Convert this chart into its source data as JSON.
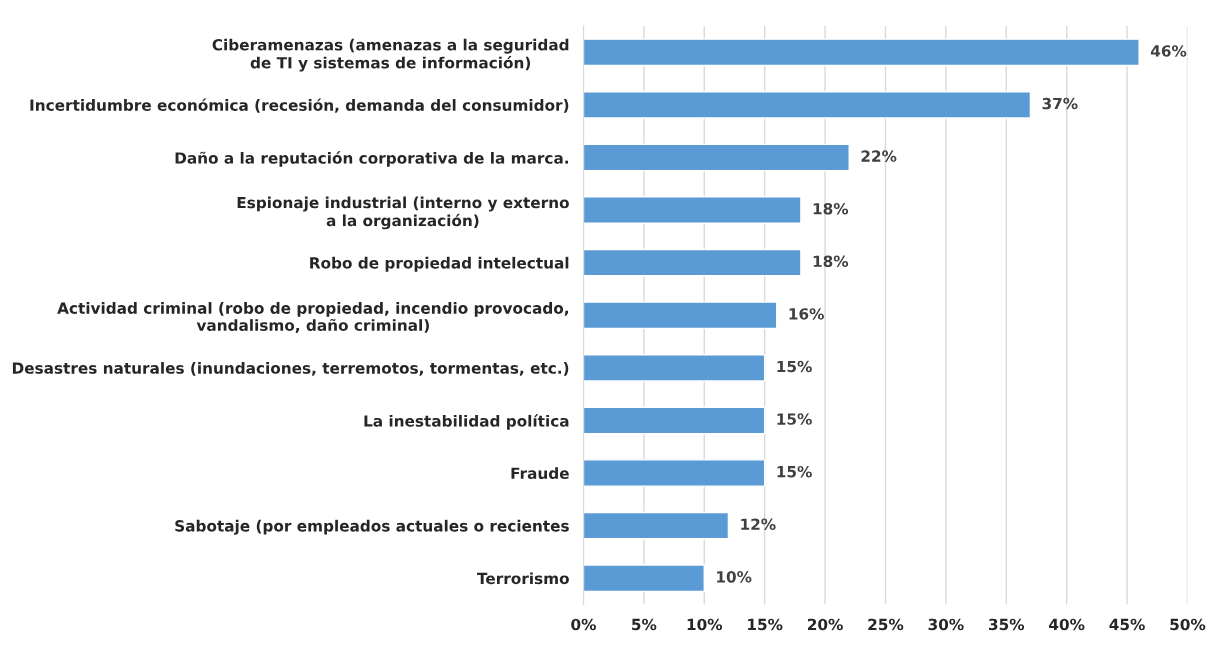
{
  "chart_data": {
    "type": "bar",
    "orientation": "horizontal",
    "categories": [
      "Ciberamenazas (amenazas a la seguridad\nde TI y sistemas de información)",
      "Incertidumbre económica (recesión, demanda del consumidor)",
      "Daño a la reputación corporativa de la marca.",
      "Espionaje industrial (interno y externo\na la organización)",
      "Robo de propiedad intelectual",
      "Actividad criminal (robo de propiedad, incendio provocado,\nvandalismo, daño criminal)",
      "Desastres naturales (inundaciones, terremotos, tormentas, etc.)",
      "La inestabilidad política",
      "Fraude",
      "Sabotaje (por empleados actuales o recientes",
      "Terrorismo"
    ],
    "values": [
      46,
      37,
      22,
      18,
      18,
      16,
      15,
      15,
      15,
      12,
      10
    ],
    "value_labels": [
      "46%",
      "37%",
      "22%",
      "18%",
      "18%",
      "16%",
      "15%",
      "15%",
      "15%",
      "12%",
      "10%"
    ],
    "color": "#5b9bd5",
    "xlim": [
      0,
      50
    ],
    "xticks": [
      {
        "value": 0,
        "label": "0%"
      },
      {
        "value": 5,
        "label": "5%"
      },
      {
        "value": 10,
        "label": "10%"
      },
      {
        "value": 15,
        "label": "15%"
      },
      {
        "value": 20,
        "label": "20%"
      },
      {
        "value": 25,
        "label": "25%"
      },
      {
        "value": 30,
        "label": "30%"
      },
      {
        "value": 35,
        "label": "35%"
      },
      {
        "value": 40,
        "label": "40%"
      },
      {
        "value": 45,
        "label": "45%"
      },
      {
        "value": 50,
        "label": "50%"
      }
    ],
    "grid": "x",
    "legend": false
  }
}
